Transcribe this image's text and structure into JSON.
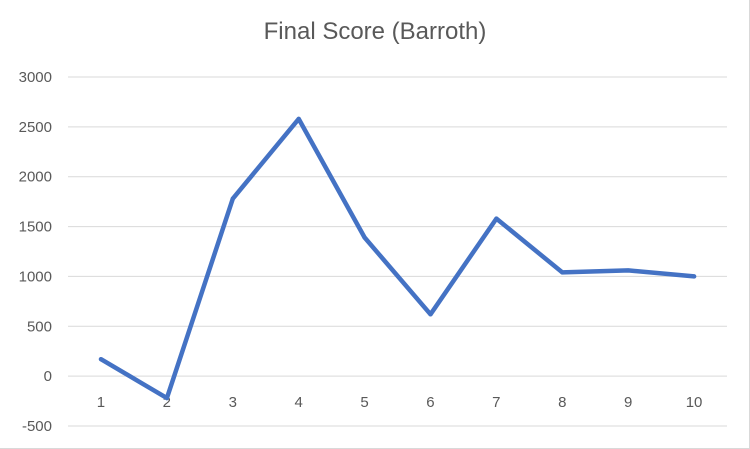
{
  "chart_data": {
    "type": "line",
    "title": "Final Score (Barroth)",
    "xlabel": "",
    "ylabel": "",
    "categories": [
      "1",
      "2",
      "3",
      "4",
      "5",
      "6",
      "7",
      "8",
      "9",
      "10"
    ],
    "series": [
      {
        "values": [
          170,
          -220,
          1780,
          2580,
          1390,
          620,
          1580,
          1040,
          1060,
          1000
        ],
        "color": "#4472c4"
      }
    ],
    "ylim": [
      -500,
      3000
    ],
    "yticks": [
      "-500",
      "0",
      "500",
      "1000",
      "1500",
      "2000",
      "2500",
      "3000"
    ],
    "grid": true,
    "legend": "none"
  }
}
